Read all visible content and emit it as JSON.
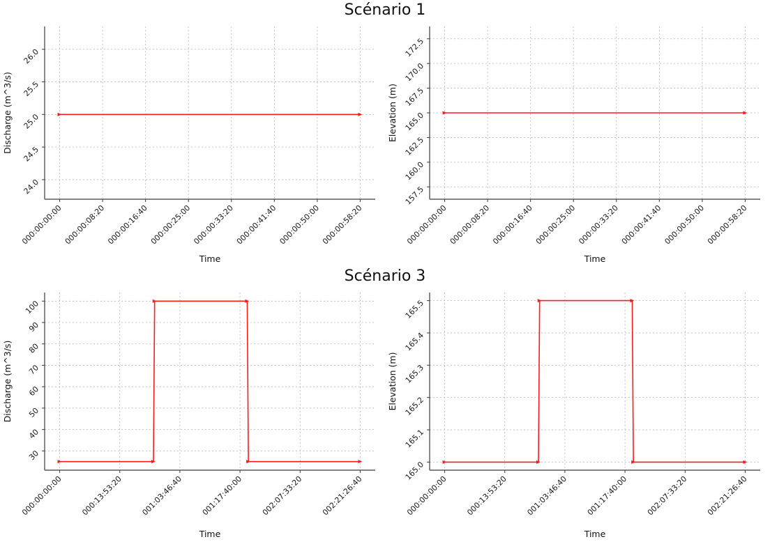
{
  "titles": {
    "scenario1": "Scénario 1",
    "scenario3": "Scénario 3"
  },
  "chart_data": [
    {
      "name": "scenario1-discharge",
      "type": "line",
      "group_title": "Scénario 1",
      "xlabel": "Time",
      "ylabel": "Discharge (m^3/s)",
      "line_color": "#ff1a1a",
      "grid": true,
      "legend": "none",
      "x_ticks": [
        0,
        500,
        1000,
        1500,
        2000,
        2500,
        3000,
        3500
      ],
      "x_tick_labels": [
        "000:00:00:00",
        "000:00:08:20",
        "000:00:16:40",
        "000:00:25:00",
        "000:00:33:20",
        "000:00:41:40",
        "000:00:50:00",
        "000:00:58:20"
      ],
      "y_ticks": [
        24.0,
        24.5,
        25.0,
        25.5,
        26.0
      ],
      "y_tick_labels": [
        "24.0",
        "24.5",
        "25.0",
        "25.5",
        "26.0"
      ],
      "xlim": [
        -175,
        3675
      ],
      "ylim": [
        23.7,
        26.35
      ],
      "points": [
        [
          0,
          25.0
        ],
        [
          3500,
          25.0
        ]
      ]
    },
    {
      "name": "scenario1-elevation",
      "type": "line",
      "group_title": "Scénario 1",
      "xlabel": "Time",
      "ylabel": "Elevation (m)",
      "line_color": "#ff1a1a",
      "grid": true,
      "legend": "none",
      "x_ticks": [
        0,
        500,
        1000,
        1500,
        2000,
        2500,
        3000,
        3500
      ],
      "x_tick_labels": [
        "000:00:00:00",
        "000:00:08:20",
        "000:00:16:40",
        "000:00:25:00",
        "000:00:33:20",
        "000:00:41:40",
        "000:00:50:00",
        "000:00:58:20"
      ],
      "y_ticks": [
        157.5,
        160.0,
        162.5,
        165.0,
        167.5,
        170.0,
        172.5
      ],
      "y_tick_labels": [
        "157.5",
        "160.0",
        "162.5",
        "165.0",
        "167.5",
        "170.0",
        "172.5"
      ],
      "xlim": [
        -175,
        3675
      ],
      "ylim": [
        156.25,
        173.75
      ],
      "points": [
        [
          0,
          165.0
        ],
        [
          3500,
          165.0
        ]
      ]
    },
    {
      "name": "scenario3-discharge",
      "type": "line",
      "group_title": "Scénario 3",
      "xlabel": "Time",
      "ylabel": "Discharge (m^3/s)",
      "line_color": "#ff1a1a",
      "grid": true,
      "legend": "none",
      "x_ticks": [
        0,
        50000,
        100000,
        150000,
        200000,
        250000
      ],
      "x_tick_labels": [
        "000:00:00:00",
        "000:13:53:20",
        "001:03:46:40",
        "001:17:40:00",
        "002:07:33:20",
        "002:21:26:40"
      ],
      "y_ticks": [
        30,
        40,
        50,
        60,
        70,
        80,
        90,
        100
      ],
      "y_tick_labels": [
        "30",
        "40",
        "50",
        "60",
        "70",
        "80",
        "90",
        "100"
      ],
      "xlim": [
        -12500,
        262500
      ],
      "ylim": [
        21,
        104
      ],
      "points": [
        [
          0,
          25
        ],
        [
          78000,
          25
        ],
        [
          79000,
          100
        ],
        [
          156000,
          100
        ],
        [
          157000,
          25
        ],
        [
          250000,
          25
        ]
      ]
    },
    {
      "name": "scenario3-elevation",
      "type": "line",
      "group_title": "Scénario 3",
      "xlabel": "Time",
      "ylabel": "Elevation (m)",
      "line_color": "#ff1a1a",
      "grid": true,
      "legend": "none",
      "x_ticks": [
        0,
        50000,
        100000,
        150000,
        200000,
        250000
      ],
      "x_tick_labels": [
        "000:00:00:00",
        "000:13:53:20",
        "001:03:46:40",
        "001:17:40:00",
        "002:07:33:20",
        "002:21:26:40"
      ],
      "y_ticks": [
        165.0,
        165.1,
        165.2,
        165.3,
        165.4,
        165.5
      ],
      "y_tick_labels": [
        "165.0",
        "165.1",
        "165.2",
        "165.3",
        "165.4",
        "165.5"
      ],
      "xlim": [
        -12500,
        262500
      ],
      "ylim": [
        164.975,
        165.525
      ],
      "points": [
        [
          0,
          165.0
        ],
        [
          78000,
          165.0
        ],
        [
          79000,
          165.5
        ],
        [
          156000,
          165.5
        ],
        [
          157000,
          165.0
        ],
        [
          250000,
          165.0
        ]
      ]
    }
  ]
}
